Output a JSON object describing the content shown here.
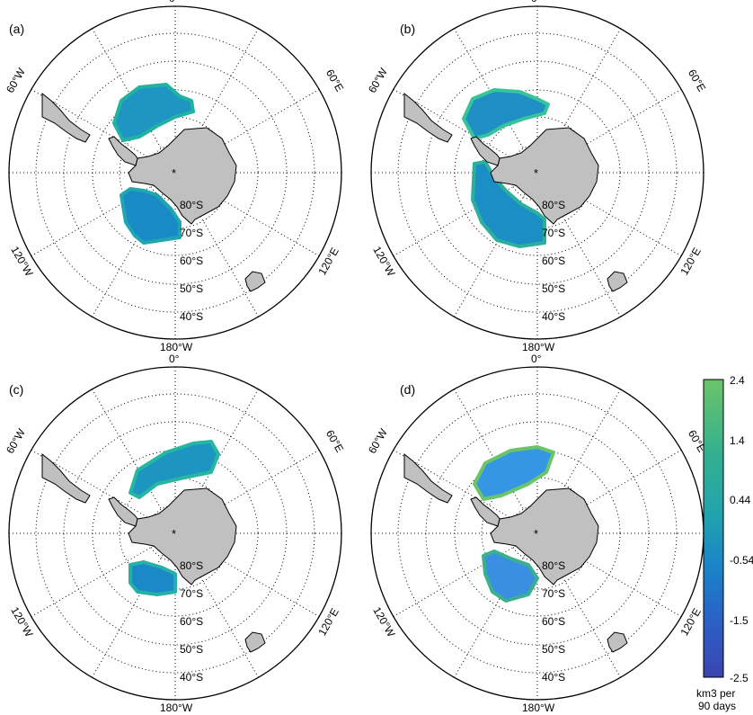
{
  "figure": {
    "panels": [
      {
        "id": "panel-a",
        "label": "(a)",
        "variant": "a"
      },
      {
        "id": "panel-b",
        "label": "(b)",
        "variant": "b"
      },
      {
        "id": "panel-c",
        "label": "(c)",
        "variant": "c"
      },
      {
        "id": "panel-d",
        "label": "(d)",
        "variant": "d"
      }
    ],
    "meridian_labels": {
      "top": "0°",
      "bottom": "180°W",
      "upper_left": "60°W",
      "upper_right": "60°E",
      "lower_left": "120°W",
      "lower_right": "120°E"
    },
    "latitude_labels": [
      "80°S",
      "70°S",
      "60°S",
      "50°S",
      "40°S"
    ],
    "colors": {
      "land": "#c0c0c0",
      "coast": "#000000",
      "ring": "#000000",
      "grid": "#000000"
    }
  },
  "colorbar": {
    "ticks": [
      "2.4",
      "1.4",
      "0.44",
      "-0.54",
      "-1.5",
      "-2.5"
    ],
    "unit_line1": "km3 per",
    "unit_line2": "90 days",
    "gradient": [
      "#6cc46a",
      "#3ab08f",
      "#24a6a8",
      "#1b8fc4",
      "#2569c8",
      "#3548b8"
    ]
  }
}
